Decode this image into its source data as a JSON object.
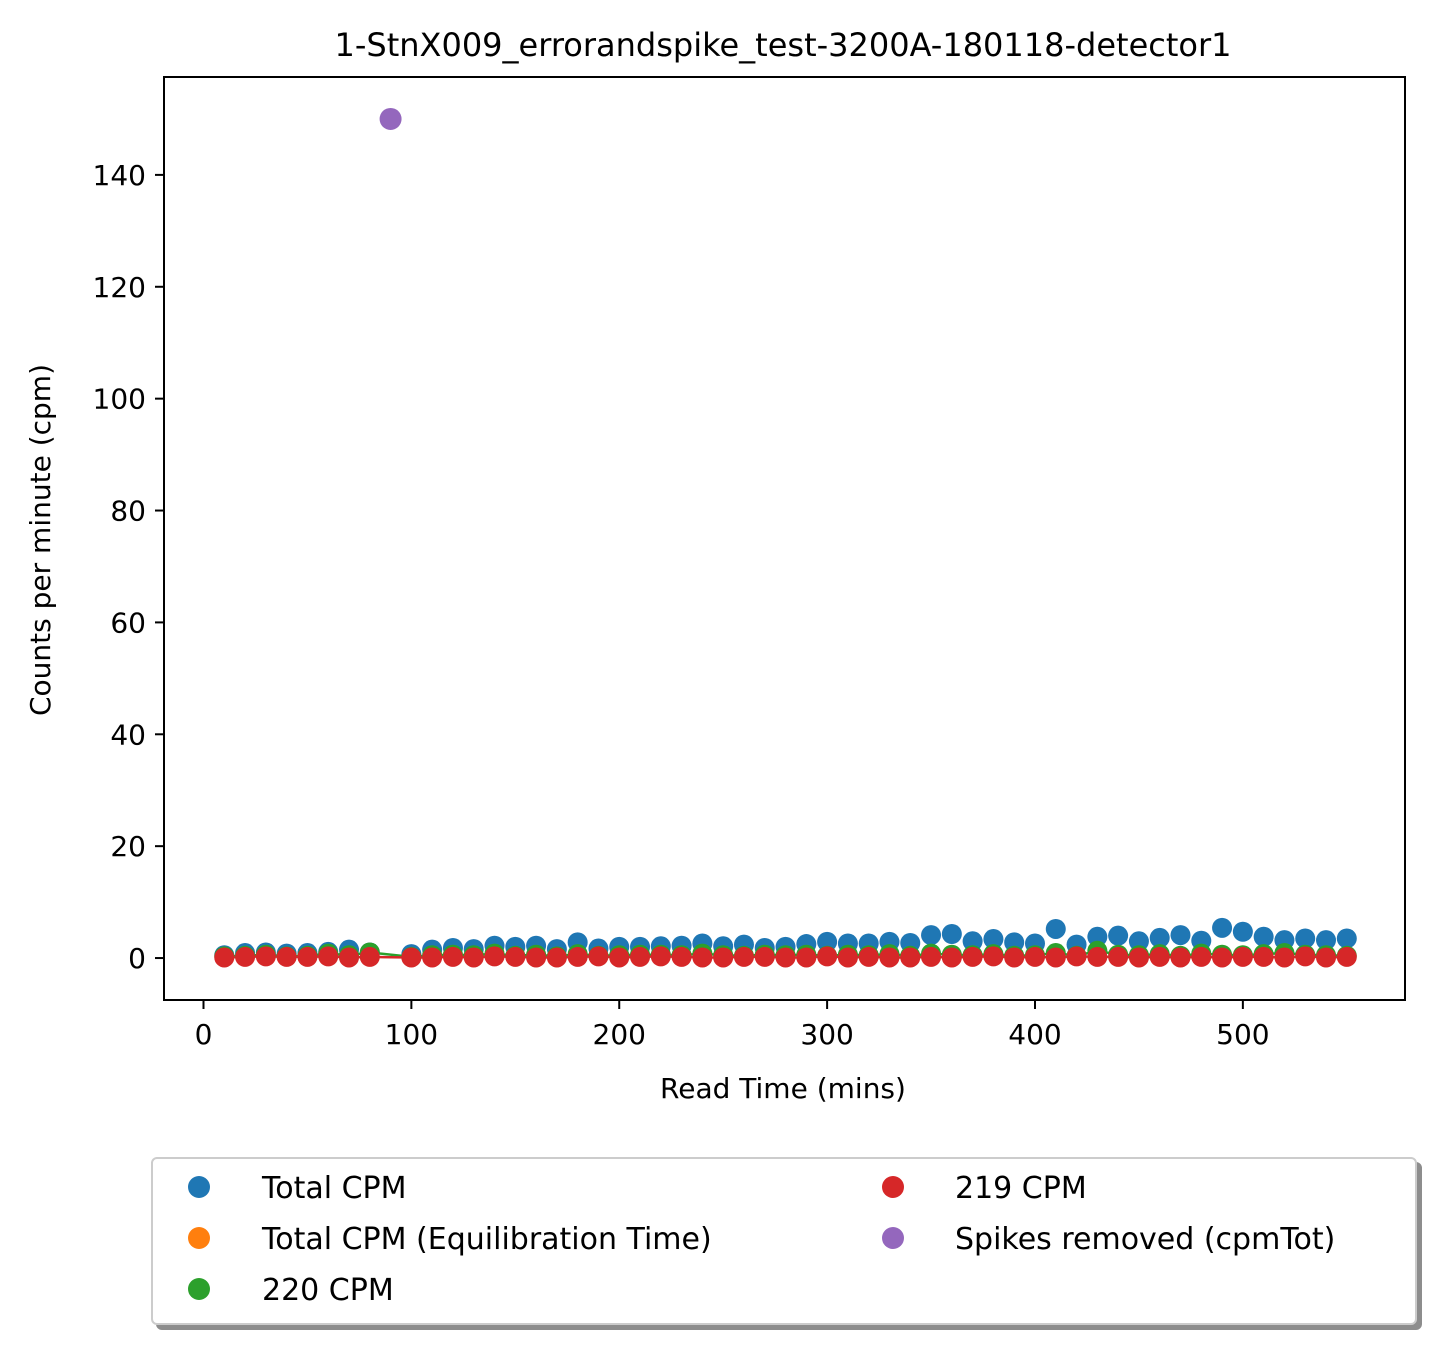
{
  "chart_data": {
    "type": "scatter",
    "title": "1-StnX009_errorandspike_test-3200A-180118-detector1",
    "xlabel": "Read Time (mins)",
    "ylabel": "Counts per minute (cpm)",
    "xlim": [
      -19,
      578
    ],
    "ylim": [
      -7.5,
      157.5
    ],
    "xticks": [
      0,
      100,
      200,
      300,
      400,
      500
    ],
    "yticks": [
      0,
      20,
      40,
      60,
      80,
      100,
      120,
      140
    ],
    "grid": false,
    "legend_position": "below",
    "legend_columns": 2,
    "x": [
      10,
      20,
      30,
      40,
      50,
      60,
      70,
      80,
      100,
      110,
      120,
      130,
      140,
      150,
      160,
      170,
      180,
      190,
      200,
      210,
      220,
      230,
      240,
      250,
      260,
      270,
      280,
      290,
      300,
      310,
      320,
      330,
      340,
      350,
      360,
      370,
      380,
      390,
      400,
      410,
      420,
      430,
      440,
      450,
      460,
      470,
      480,
      490,
      500,
      510,
      520,
      530,
      540,
      550
    ],
    "series": [
      {
        "name": "Total CPM",
        "color": "#1f77b4",
        "values": [
          0.5,
          0.9,
          1.0,
          0.8,
          0.9,
          1.1,
          1.5,
          1.0,
          0.7,
          1.5,
          1.8,
          1.6,
          2.2,
          2.0,
          2.2,
          1.6,
          2.8,
          1.7,
          2.0,
          2.0,
          2.1,
          2.2,
          2.6,
          2.1,
          2.4,
          1.8,
          2.0,
          2.5,
          2.9,
          2.6,
          2.6,
          2.9,
          2.7,
          4.1,
          4.3,
          3.0,
          3.4,
          2.8,
          2.6,
          5.2,
          2.4,
          3.8,
          4.0,
          3.0,
          3.6,
          4.1,
          3.1,
          5.4,
          4.7,
          3.8,
          3.2,
          3.5,
          3.2,
          3.5
        ]
      },
      {
        "name": "Total CPM (Equilibration Time)",
        "color": "#ff7f0e",
        "values": []
      },
      {
        "name": "220 CPM",
        "color": "#2ca02c",
        "values": [
          0.3,
          0.4,
          0.6,
          0.3,
          0.4,
          0.8,
          0.5,
          1.0,
          0.2,
          0.5,
          0.6,
          0.5,
          0.8,
          0.4,
          0.6,
          0.3,
          0.7,
          0.4,
          0.5,
          0.6,
          0.6,
          0.5,
          0.8,
          0.5,
          0.4,
          0.6,
          0.5,
          0.6,
          0.4,
          0.6,
          0.5,
          0.7,
          0.4,
          0.8,
          0.6,
          0.5,
          0.7,
          0.4,
          0.5,
          0.9,
          0.4,
          1.3,
          0.6,
          0.5,
          0.7,
          0.4,
          0.8,
          0.6,
          0.5,
          0.7,
          0.9,
          0.6,
          0.5,
          0.4
        ]
      },
      {
        "name": "219 CPM",
        "color": "#d62728",
        "values": [
          0.1,
          0.2,
          0.3,
          0.2,
          0.2,
          0.3,
          0.1,
          0.2,
          0.1,
          0.1,
          0.2,
          0.1,
          0.3,
          0.2,
          0.1,
          0.1,
          0.2,
          0.3,
          0.1,
          0.2,
          0.3,
          0.2,
          0.1,
          0.1,
          0.2,
          0.2,
          0.1,
          0.1,
          0.3,
          0.1,
          0.2,
          0.1,
          0.1,
          0.2,
          0.1,
          0.2,
          0.3,
          0.1,
          0.2,
          0.1,
          0.3,
          0.2,
          0.2,
          0.1,
          0.2,
          0.1,
          0.2,
          0.1,
          0.2,
          0.2,
          0.1,
          0.3,
          0.1,
          0.2
        ]
      },
      {
        "name": "Spikes removed (cpmTot)",
        "color": "#9467bd",
        "x": [
          90
        ],
        "values": [
          150
        ]
      }
    ]
  }
}
